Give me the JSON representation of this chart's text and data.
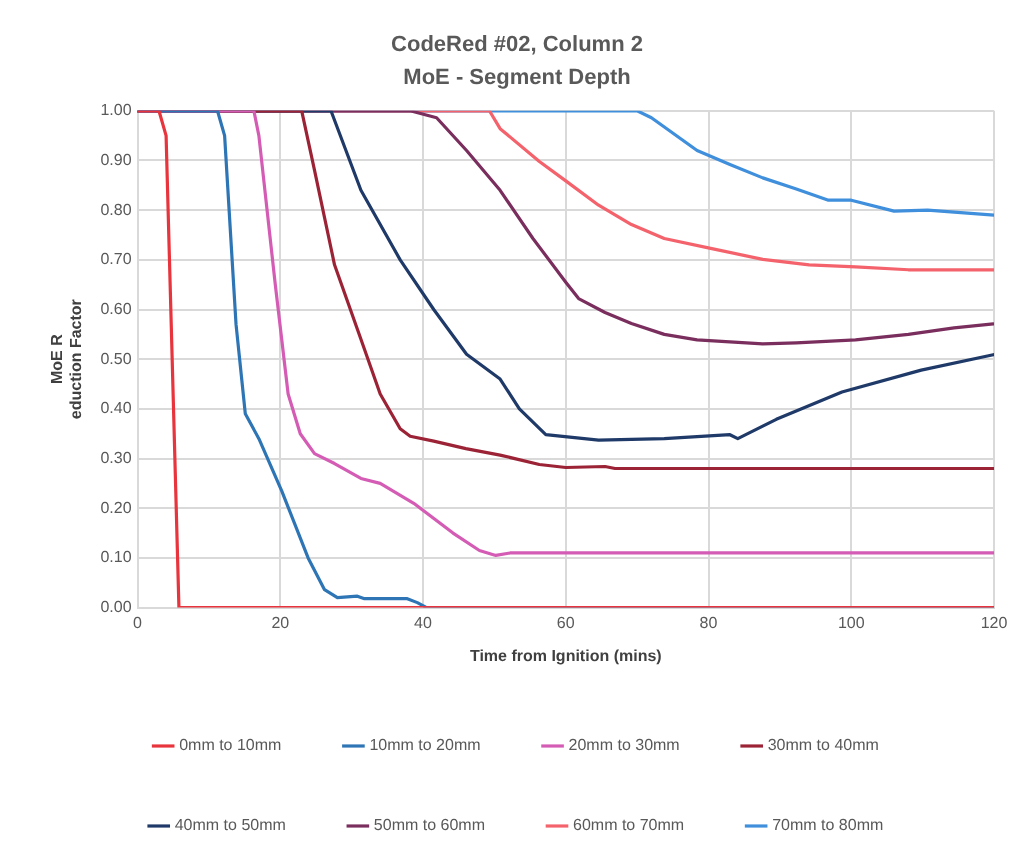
{
  "chart_data": {
    "type": "line",
    "title": "CodeRed #02, Column 2",
    "subtitle": "MoE - Segment Depth",
    "xlabel": "Time from Ignition (mins)",
    "ylabel": "MoE R\neduction Factor",
    "xlim": [
      0,
      120
    ],
    "xticks": [
      0,
      20,
      40,
      60,
      80,
      100,
      120
    ],
    "ylim": [
      0,
      1
    ],
    "yticks": [
      {
        "value": 0,
        "label": "0.00"
      },
      {
        "value": 0.1,
        "label": "0.10"
      },
      {
        "value": 0.2,
        "label": "0.20"
      },
      {
        "value": 0.3,
        "label": "0.30"
      },
      {
        "value": 0.4,
        "label": "0.40"
      },
      {
        "value": 0.5,
        "label": "0.50"
      },
      {
        "value": 0.6,
        "label": "0.60"
      },
      {
        "value": 0.7,
        "label": "0.70"
      },
      {
        "value": 0.8,
        "label": "0.80"
      },
      {
        "value": 0.9,
        "label": "0.90"
      },
      {
        "value": 1,
        "label": "1.00"
      }
    ],
    "grid": true,
    "legend": "bottom",
    "marker": "none",
    "line_style": "solid",
    "series": [
      {
        "name": "0mm to 10mm",
        "color": "#e8343c",
        "x": [
          0,
          3,
          4,
          5.8,
          120
        ],
        "values": [
          1,
          1,
          0.95,
          0,
          0
        ]
      },
      {
        "name": "10mm to 20mm",
        "color": "#2e75b6",
        "x": [
          0,
          11.2,
          12.2,
          13.8,
          15.1,
          17,
          20.2,
          23.9,
          26.2,
          28,
          30.8,
          31.8,
          37.8,
          39.2,
          40.5,
          120
        ],
        "values": [
          1,
          1,
          0.95,
          0.57,
          0.39,
          0.34,
          0.235,
          0.1,
          0.036,
          0.02,
          0.023,
          0.018,
          0.018,
          0.01,
          0,
          0
        ]
      },
      {
        "name": "20mm to 30mm",
        "color": "#d45cb4",
        "x": [
          0,
          16.3,
          17,
          19.3,
          21.1,
          22.8,
          24.8,
          27.6,
          31.3,
          34,
          38.7,
          44.2,
          47.9,
          50.2,
          52.2,
          120
        ],
        "values": [
          1,
          1,
          0.95,
          0.65,
          0.43,
          0.35,
          0.31,
          0.29,
          0.26,
          0.25,
          0.21,
          0.15,
          0.115,
          0.105,
          0.11,
          0.11
        ]
      },
      {
        "name": "30mm to 40mm",
        "color": "#9b2335",
        "x": [
          0,
          23,
          24.8,
          27.6,
          31.3,
          34,
          36.8,
          38.2,
          41.5,
          46,
          50.8,
          56.3,
          60,
          65.5,
          66.9,
          120
        ],
        "values": [
          1,
          1,
          0.88,
          0.69,
          0.54,
          0.43,
          0.36,
          0.345,
          0.335,
          0.32,
          0.307,
          0.288,
          0.282,
          0.284,
          0.28,
          0.28
        ]
      },
      {
        "name": "40mm to 50mm",
        "color": "#1f3a68",
        "x": [
          0,
          27.1,
          31.3,
          36.8,
          41.5,
          46.1,
          50.8,
          53.5,
          57.2,
          64.6,
          73.8,
          83,
          84.1,
          89.5,
          98.7,
          109.8,
          119.9
        ],
        "values": [
          1,
          1,
          0.84,
          0.7,
          0.6,
          0.51,
          0.46,
          0.4,
          0.348,
          0.337,
          0.34,
          0.348,
          0.34,
          0.379,
          0.434,
          0.478,
          0.509
        ]
      },
      {
        "name": "50mm to 60mm",
        "color": "#7a2e5e",
        "x": [
          0,
          38.2,
          41.9,
          46.1,
          50.8,
          55.4,
          60,
          61.8,
          65.5,
          69.2,
          73.8,
          78.4,
          87.6,
          92.3,
          100.6,
          108,
          114.4,
          119.9
        ],
        "values": [
          1,
          1,
          0.986,
          0.92,
          0.84,
          0.743,
          0.655,
          0.622,
          0.594,
          0.572,
          0.55,
          0.539,
          0.531,
          0.533,
          0.539,
          0.55,
          0.563,
          0.571
        ]
      },
      {
        "name": "60mm to 70mm",
        "color": "#f4626c",
        "x": [
          0,
          49.3,
          50.8,
          56.3,
          60,
          64.6,
          69.2,
          73.8,
          80.3,
          87.6,
          94.1,
          100.6,
          108,
          120
        ],
        "values": [
          1,
          1,
          0.964,
          0.898,
          0.859,
          0.81,
          0.771,
          0.743,
          0.723,
          0.701,
          0.69,
          0.686,
          0.68,
          0.68
        ]
      },
      {
        "name": "70mm to 80mm",
        "color": "#3f8fdc",
        "x": [
          0,
          70,
          72,
          78.4,
          83,
          87.6,
          92.2,
          96.8,
          100,
          106,
          110.7,
          120
        ],
        "values": [
          1,
          1,
          0.986,
          0.92,
          0.892,
          0.865,
          0.843,
          0.82,
          0.82,
          0.798,
          0.8,
          0.79
        ]
      }
    ]
  }
}
